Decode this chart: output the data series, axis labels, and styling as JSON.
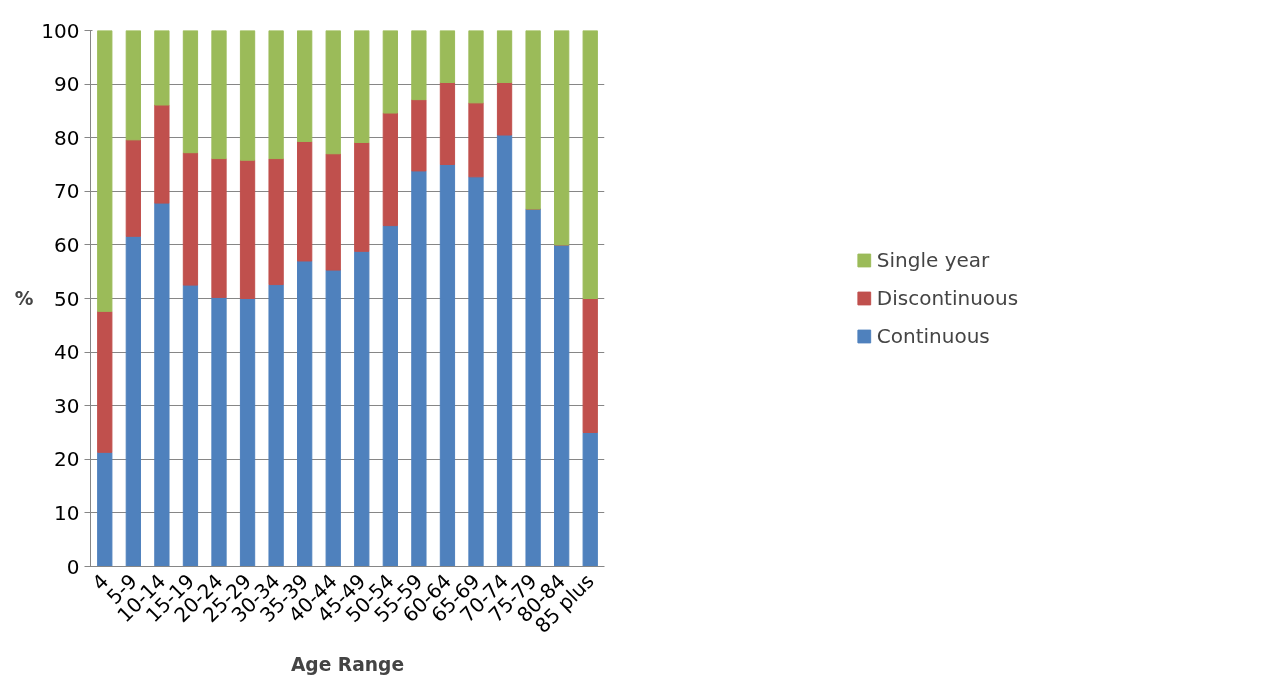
{
  "chart_data": {
    "type": "bar",
    "stacked": true,
    "xlabel": "Age Range",
    "ylabel": "%",
    "categories": [
      "4",
      "5-9",
      "10-14",
      "15-19",
      "20-24",
      "25-29",
      "30-34",
      "35-39",
      "40-44",
      "45-49",
      "50-54",
      "55-59",
      "60-64",
      "65-69",
      "70-74",
      "75-79",
      "80-84",
      "85 plus"
    ],
    "series": [
      {
        "name": "Continuous",
        "color": "#4f81bd",
        "values": [
          21.3,
          61.6,
          67.8,
          52.5,
          50.2,
          50.0,
          52.6,
          57.0,
          55.3,
          58.8,
          63.6,
          73.8,
          75.0,
          72.7,
          80.5,
          66.7,
          60.0,
          25.0
        ]
      },
      {
        "name": "Discontinuous",
        "color": "#c0504d",
        "values": [
          26.3,
          18.0,
          18.3,
          24.7,
          25.9,
          25.8,
          23.5,
          22.3,
          21.7,
          20.3,
          21.0,
          13.3,
          15.3,
          13.8,
          9.8,
          0,
          0,
          25.0
        ]
      },
      {
        "name": "Single year",
        "color": "#9bbb59",
        "values": [
          52.4,
          20.4,
          13.9,
          22.8,
          23.9,
          24.2,
          23.9,
          20.7,
          23.0,
          20.9,
          15.4,
          12.9,
          9.7,
          13.5,
          9.7,
          33.3,
          40.0,
          50.0
        ]
      }
    ],
    "ylim": [
      0,
      100
    ],
    "yticks": [
      0,
      10,
      20,
      30,
      40,
      50,
      60,
      70,
      80,
      90,
      100
    ],
    "grid": "y",
    "legend": "right"
  }
}
